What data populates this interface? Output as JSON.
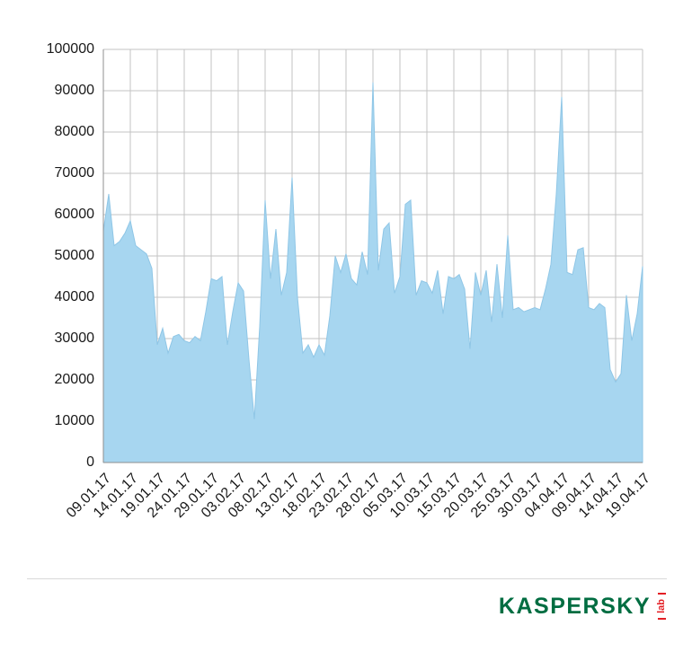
{
  "chart_data": {
    "type": "area",
    "title": "",
    "xlabel": "",
    "ylabel": "",
    "x_tick_labels": [
      "09.01.17",
      "14.01.17",
      "19.01.17",
      "24.01.17",
      "29.01.17",
      "03.02.17",
      "08.02.17",
      "13.02.17",
      "18.02.17",
      "23.02.17",
      "28.02.17",
      "05.03.17",
      "10.03.17",
      "15.03.17",
      "20.03.17",
      "25.03.17",
      "30.03.17",
      "04.04.17",
      "09.04.17",
      "14.04.17",
      "19.04.17"
    ],
    "x_points_per_tick": 5,
    "x_interval": "daily",
    "values": [
      56000,
      65000,
      52500,
      53500,
      55500,
      58500,
      52500,
      51500,
      50500,
      47000,
      28500,
      32500,
      26500,
      30500,
      31000,
      29500,
      29000,
      30500,
      29500,
      36500,
      44500,
      44000,
      45000,
      28500,
      36500,
      43500,
      41500,
      25000,
      10500,
      33000,
      63500,
      44500,
      56500,
      40500,
      46000,
      69000,
      40000,
      26500,
      28500,
      25500,
      28500,
      26000,
      35500,
      50000,
      46000,
      50500,
      44500,
      43000,
      51000,
      45500,
      92000,
      46500,
      56500,
      58000,
      41000,
      45000,
      62500,
      63500,
      40500,
      44000,
      43500,
      41000,
      46500,
      36000,
      45000,
      44500,
      45500,
      42000,
      27500,
      46000,
      40500,
      46500,
      34000,
      48000,
      35000,
      55000,
      37000,
      37500,
      36500,
      37000,
      37500,
      37000,
      42000,
      48000,
      65000,
      88500,
      46000,
      45500,
      51500,
      52000,
      37500,
      37000,
      38500,
      37500,
      22500,
      19500,
      21500,
      40500,
      29500,
      36000,
      47500
    ],
    "y_ticks": [
      0,
      10000,
      20000,
      30000,
      40000,
      50000,
      60000,
      70000,
      80000,
      90000,
      100000
    ],
    "ylim": [
      0,
      100000
    ],
    "grid": true,
    "legend": false,
    "colors": {
      "fill": "#a7d6f0",
      "line": "#8fc6e6",
      "grid": "#c3c3c3",
      "axis": "#8f8f8f",
      "tick_text": "#1a1a1a"
    }
  },
  "brand": {
    "wordmark": "KASPERSKY",
    "sub": "lab",
    "wordmark_color": "#006d41",
    "sub_color": "#e31e24"
  }
}
